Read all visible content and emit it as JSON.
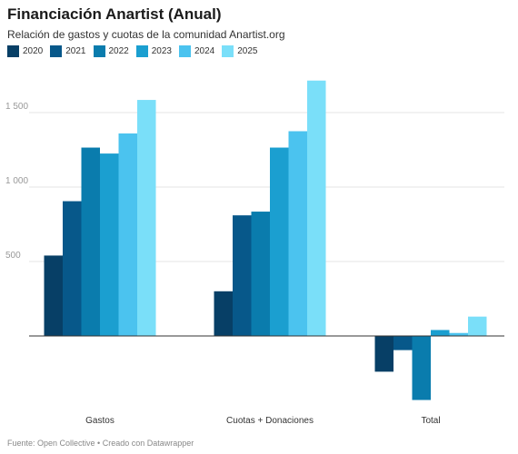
{
  "header": {
    "title": "Financiación Anartist (Anual)",
    "subtitle": "Relación de gastos y cuotas de la comunidad Anartist.org"
  },
  "footer": {
    "text": "Fuente: Open Collective • Creado con Datawrapper"
  },
  "colors": {
    "2020": "#073f66",
    "2021": "#07588a",
    "2022": "#0a7cad",
    "2023": "#1b9fd0",
    "2024": "#4bc3ef",
    "2025": "#7adff9",
    "grid": "#e4e4e4",
    "axis": "#333333"
  },
  "chart_data": {
    "type": "bar",
    "title": "Financiación Anartist (Anual)",
    "subtitle": "Relación de gastos y cuotas de la comunidad Anartist.org",
    "categories": [
      "Gastos",
      "Cuotas + Donaciones",
      "Total"
    ],
    "series": [
      {
        "name": "2020",
        "values": [
          540,
          300,
          -240
        ]
      },
      {
        "name": "2021",
        "values": [
          905,
          810,
          -95
        ]
      },
      {
        "name": "2022",
        "values": [
          1265,
          835,
          -430
        ]
      },
      {
        "name": "2023",
        "values": [
          1225,
          1265,
          40
        ]
      },
      {
        "name": "2024",
        "values": [
          1360,
          1375,
          20
        ]
      },
      {
        "name": "2025",
        "values": [
          1585,
          1715,
          130
        ]
      }
    ],
    "yticks": [
      500,
      1000,
      1500
    ],
    "ytick_labels": [
      "500",
      "1 000",
      "1 500"
    ],
    "ylim": [
      -470,
      1760
    ],
    "grid": true,
    "legend_position": "top-left",
    "xlabel": "",
    "ylabel": ""
  }
}
